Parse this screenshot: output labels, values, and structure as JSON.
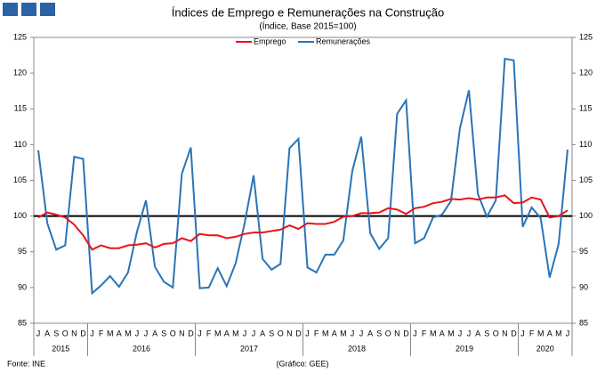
{
  "chart_data": {
    "type": "line",
    "title": "Índices de Emprego e Remunerações na Construção",
    "subtitle": "(Índice, Base 2015=100)",
    "source": "Fonte: INE",
    "credit": "(Gráfico: GEE)",
    "categories": [
      "J",
      "A",
      "S",
      "O",
      "N",
      "D",
      "J",
      "F",
      "M",
      "A",
      "M",
      "J",
      "J",
      "A",
      "S",
      "O",
      "N",
      "D",
      "J",
      "F",
      "M",
      "A",
      "M",
      "J",
      "J",
      "A",
      "S",
      "O",
      "N",
      "D",
      "J",
      "F",
      "M",
      "A",
      "M",
      "J",
      "J",
      "A",
      "S",
      "O",
      "N",
      "D",
      "J",
      "F",
      "M",
      "A",
      "M",
      "J",
      "J",
      "A",
      "S",
      "O",
      "N",
      "D",
      "J",
      "F",
      "M",
      "A",
      "M",
      "J"
    ],
    "year_labels": [
      "2015",
      "2016",
      "2017",
      "2018",
      "2019",
      "2020"
    ],
    "series": [
      {
        "name": "Emprego",
        "color": "#e8141c",
        "values": [
          99.8,
          100.5,
          100.2,
          99.8,
          98.8,
          97.3,
          95.3,
          95.9,
          95.5,
          95.5,
          95.9,
          96.0,
          96.2,
          95.6,
          96.1,
          96.2,
          96.9,
          96.5,
          97.5,
          97.3,
          97.3,
          96.9,
          97.1,
          97.5,
          97.7,
          97.7,
          97.9,
          98.1,
          98.7,
          98.2,
          99.0,
          98.9,
          98.9,
          99.2,
          99.9,
          100.0,
          100.4,
          100.4,
          100.5,
          101.1,
          100.9,
          100.3,
          101.1,
          101.3,
          101.8,
          102.0,
          102.4,
          102.3,
          102.5,
          102.3,
          102.6,
          102.6,
          102.9,
          101.8,
          101.9,
          102.6,
          102.3,
          99.8,
          100.0,
          100.8
        ]
      },
      {
        "name": "Remunerações",
        "color": "#2a74b8",
        "values": [
          109.2,
          99.0,
          95.3,
          95.9,
          108.3,
          108.0,
          89.2,
          90.3,
          91.6,
          90.1,
          92.1,
          97.8,
          102.2,
          92.9,
          90.8,
          90.0,
          105.9,
          109.6,
          89.9,
          90.0,
          92.7,
          90.2,
          93.4,
          99.0,
          105.7,
          94.0,
          92.5,
          93.3,
          109.5,
          110.8,
          92.8,
          92.1,
          94.6,
          94.6,
          96.6,
          106.3,
          111.1,
          97.6,
          95.4,
          96.9,
          114.3,
          116.2,
          96.2,
          96.9,
          99.8,
          100.2,
          102.1,
          112.3,
          117.6,
          103.1,
          99.9,
          102.2,
          122.0,
          121.8,
          98.5,
          101.2,
          99.7,
          91.4,
          96.1,
          109.3
        ]
      }
    ],
    "baseline": 100,
    "ylim": [
      85,
      125
    ],
    "yticks": [
      85,
      90,
      95,
      100,
      105,
      110,
      115,
      120,
      125
    ],
    "y2lim": [
      85,
      125
    ],
    "y2ticks": [
      85,
      90,
      95,
      100,
      105,
      110,
      115,
      120,
      125
    ],
    "legend": "top"
  }
}
